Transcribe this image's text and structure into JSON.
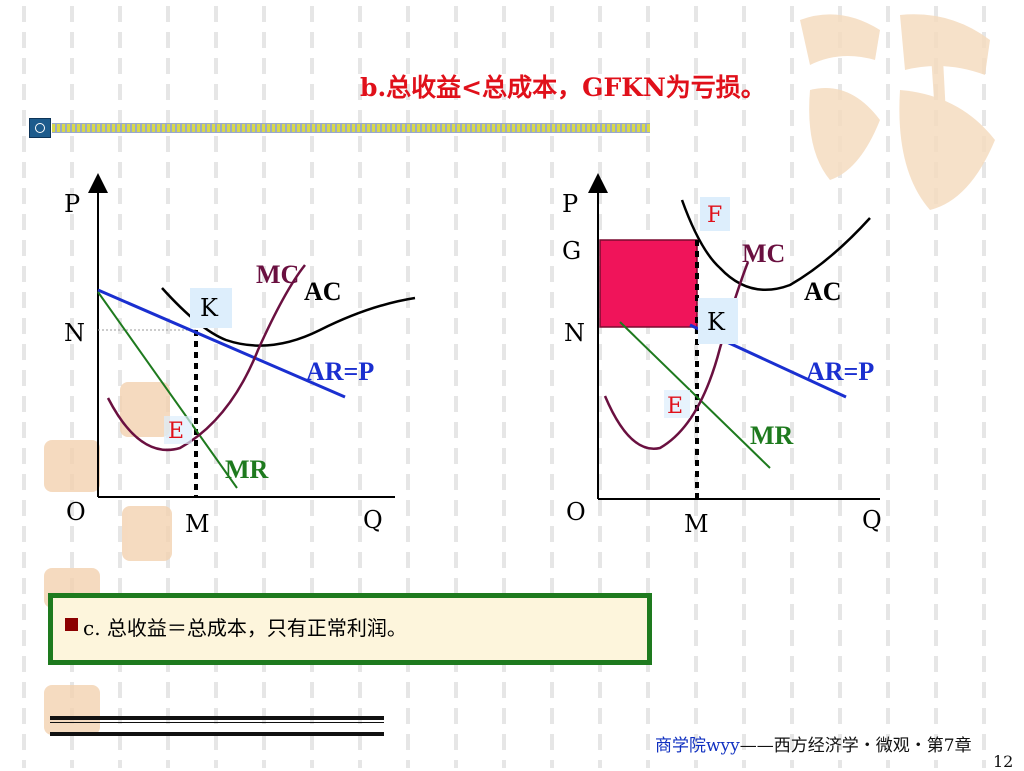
{
  "title": "b.总收益<总成本，GFKN为亏损。",
  "left_diagram": {
    "p_axis": "P",
    "q_axis": "Q",
    "origin": "O",
    "n_label": "N",
    "m_label": "M",
    "k_label": "K",
    "e_label": "E",
    "mc_label": "MC",
    "ac_label": "AC",
    "ar_label": "AR=P",
    "mr_label": "MR"
  },
  "right_diagram": {
    "p_axis": "P",
    "q_axis": "Q",
    "origin": "O",
    "n_label": "N",
    "m_label": "M",
    "g_label": "G",
    "f_label": "F",
    "k_label": "K",
    "e_label": "E",
    "mc_label": "MC",
    "ac_label": "AC",
    "ar_label": "AR=P",
    "mr_label": "MR"
  },
  "note": {
    "text": "c. 总收益＝总成本，只有正常利润。"
  },
  "footer": {
    "school": "商学院wyy",
    "course": "——西方经济学・微观・第7章",
    "page": "12"
  },
  "colors": {
    "title": "#e0101a",
    "ar": "#1a2fd0",
    "mr": "#1e7a1e",
    "mc": "#6a1040",
    "ac": "#000000",
    "loss_area": "#f0145a",
    "label_box": "#ddeefc",
    "note_border": "#1e7a1e"
  }
}
